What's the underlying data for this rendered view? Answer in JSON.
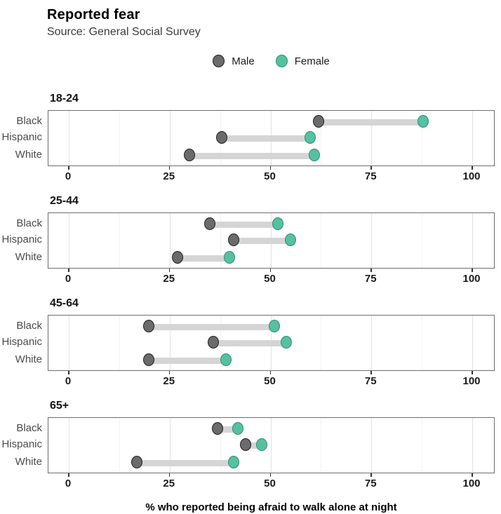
{
  "header": {
    "title": "Reported fear",
    "subtitle": "Source: General Social Survey"
  },
  "legend": [
    {
      "label": "Male",
      "fill": "#6b6b6b",
      "stroke": "#1f1f1f"
    },
    {
      "label": "Female",
      "fill": "#55c1a1",
      "stroke": "#2e8b74"
    }
  ],
  "axis": {
    "major_ticks": [
      0,
      25,
      50,
      75,
      100
    ],
    "minor_ticks": [
      12.5,
      37.5,
      62.5,
      87.5
    ]
  },
  "chart_data": {
    "type": "dumbbell",
    "title": "Reported fear",
    "subtitle": "Source: General Social Survey",
    "xlabel": "% who reported being afraid to walk alone at night",
    "xlim": [
      0,
      100
    ],
    "x_ticks": [
      0,
      25,
      50,
      75,
      100
    ],
    "grid": "vertical-only",
    "legend_position": "top-center",
    "series_names": [
      "Male",
      "Female"
    ],
    "facets": [
      {
        "age": "18-24",
        "rows": [
          {
            "group": "Black",
            "male": 62,
            "female": 88
          },
          {
            "group": "Hispanic",
            "male": 38,
            "female": 60
          },
          {
            "group": "White",
            "male": 30,
            "female": 61
          }
        ]
      },
      {
        "age": "25-44",
        "rows": [
          {
            "group": "Black",
            "male": 35,
            "female": 52
          },
          {
            "group": "Hispanic",
            "male": 41,
            "female": 55
          },
          {
            "group": "White",
            "male": 27,
            "female": 40
          }
        ]
      },
      {
        "age": "45-64",
        "rows": [
          {
            "group": "Black",
            "male": 20,
            "female": 51
          },
          {
            "group": "Hispanic",
            "male": 36,
            "female": 54
          },
          {
            "group": "White",
            "male": 20,
            "female": 39
          }
        ]
      },
      {
        "age": "65+",
        "rows": [
          {
            "group": "Black",
            "male": 37,
            "female": 42
          },
          {
            "group": "Hispanic",
            "male": 44,
            "female": 48
          },
          {
            "group": "White",
            "male": 17,
            "female": 41
          }
        ]
      }
    ],
    "colors": {
      "male_fill": "#6b6b6b",
      "male_stroke": "#1f1f1f",
      "female_fill": "#55c1a1",
      "female_stroke": "#2e8b74",
      "connector": "#d5d5d5",
      "major_grid": "#e2e2e2",
      "minor_grid": "#f2f2f2",
      "panel_border": "#6e6e6e"
    }
  }
}
